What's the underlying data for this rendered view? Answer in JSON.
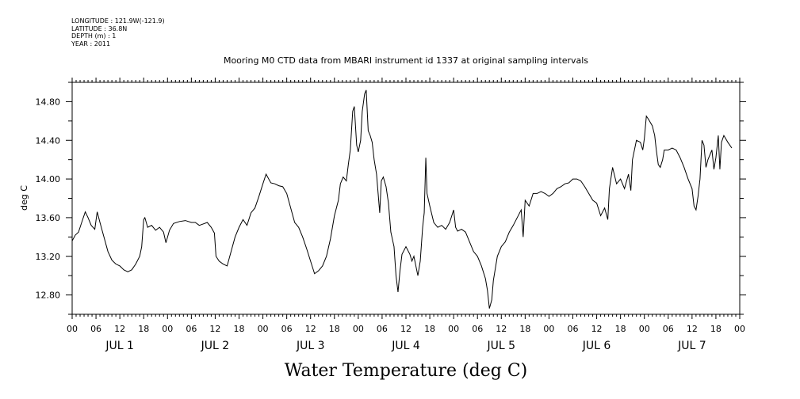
{
  "meta": {
    "longitude": "LONGITUDE : 121.9W(-121.9)",
    "latitude": "LATITUDE : 36.8N",
    "depth": "DEPTH (m) : 1",
    "year": "YEAR : 2011"
  },
  "chart_data": {
    "type": "line",
    "title": "Mooring M0 CTD data from MBARI instrument id 1337 at original sampling intervals",
    "xlabel": "Water Temperature (deg C)",
    "ylabel": "deg C",
    "ylim": [
      12.6,
      15.0
    ],
    "xlim_hours": [
      0,
      168
    ],
    "yticks": [
      12.8,
      13.2,
      13.6,
      14.0,
      14.4,
      14.8
    ],
    "ytick_labels": [
      "12.80",
      "13.20",
      "13.60",
      "14.00",
      "14.40",
      "14.80"
    ],
    "xtick_hours": [
      0,
      6,
      12,
      18,
      24,
      30,
      36,
      42,
      48,
      54,
      60,
      66,
      72,
      78,
      84,
      90,
      96,
      102,
      108,
      114,
      120,
      126,
      132,
      138,
      144,
      150,
      156,
      162,
      168
    ],
    "xtick_labels": [
      "00",
      "06",
      "12",
      "18",
      "00",
      "06",
      "12",
      "18",
      "00",
      "06",
      "12",
      "18",
      "00",
      "06",
      "12",
      "18",
      "00",
      "06",
      "12",
      "18",
      "00",
      "06",
      "12",
      "18",
      "00",
      "06",
      "12",
      "18",
      "00"
    ],
    "day_labels": [
      "JUL 1",
      "JUL 2",
      "JUL 3",
      "JUL 4",
      "JUL 5",
      "JUL 6",
      "JUL 7"
    ],
    "series": [
      {
        "points": [
          [
            0,
            13.36
          ],
          [
            0.8,
            13.42
          ],
          [
            1.6,
            13.45
          ],
          [
            2.4,
            13.55
          ],
          [
            3.3,
            13.66
          ],
          [
            4.0,
            13.6
          ],
          [
            4.8,
            13.52
          ],
          [
            5.7,
            13.48
          ],
          [
            6.3,
            13.66
          ],
          [
            7.0,
            13.55
          ],
          [
            8.0,
            13.4
          ],
          [
            9.0,
            13.25
          ],
          [
            10.0,
            13.16
          ],
          [
            11.0,
            13.12
          ],
          [
            12.0,
            13.1
          ],
          [
            13.0,
            13.06
          ],
          [
            14.0,
            13.04
          ],
          [
            15.0,
            13.06
          ],
          [
            16.0,
            13.12
          ],
          [
            17.0,
            13.2
          ],
          [
            17.5,
            13.3
          ],
          [
            18.0,
            13.58
          ],
          [
            18.3,
            13.6
          ],
          [
            19.0,
            13.5
          ],
          [
            20.0,
            13.52
          ],
          [
            21.0,
            13.47
          ],
          [
            22.0,
            13.5
          ],
          [
            23.0,
            13.45
          ],
          [
            23.6,
            13.34
          ],
          [
            24.5,
            13.47
          ],
          [
            25.5,
            13.54
          ],
          [
            27.0,
            13.56
          ],
          [
            28.5,
            13.57
          ],
          [
            30.0,
            13.55
          ],
          [
            31.0,
            13.55
          ],
          [
            32.0,
            13.52
          ],
          [
            34.0,
            13.55
          ],
          [
            35.0,
            13.5
          ],
          [
            35.8,
            13.44
          ],
          [
            36.2,
            13.2
          ],
          [
            37.0,
            13.15
          ],
          [
            38.0,
            13.12
          ],
          [
            39.0,
            13.1
          ],
          [
            40.0,
            13.25
          ],
          [
            41.0,
            13.4
          ],
          [
            42.0,
            13.5
          ],
          [
            43.0,
            13.58
          ],
          [
            44.0,
            13.52
          ],
          [
            45.0,
            13.65
          ],
          [
            46.0,
            13.7
          ],
          [
            47.0,
            13.82
          ],
          [
            48.0,
            13.95
          ],
          [
            48.8,
            14.05
          ],
          [
            50.0,
            13.96
          ],
          [
            51.0,
            13.95
          ],
          [
            52.0,
            13.93
          ],
          [
            53.0,
            13.92
          ],
          [
            54.0,
            13.85
          ],
          [
            55.0,
            13.7
          ],
          [
            56.0,
            13.55
          ],
          [
            57.0,
            13.5
          ],
          [
            58.0,
            13.4
          ],
          [
            59.0,
            13.28
          ],
          [
            60.0,
            13.15
          ],
          [
            61.0,
            13.02
          ],
          [
            62.0,
            13.05
          ],
          [
            63.0,
            13.1
          ],
          [
            64.0,
            13.2
          ],
          [
            65.0,
            13.38
          ],
          [
            66.0,
            13.62
          ],
          [
            67.0,
            13.78
          ],
          [
            67.5,
            13.95
          ],
          [
            68.2,
            14.02
          ],
          [
            69.0,
            13.98
          ],
          [
            69.5,
            14.15
          ],
          [
            70.0,
            14.3
          ],
          [
            70.6,
            14.7
          ],
          [
            71.0,
            14.75
          ],
          [
            71.6,
            14.35
          ],
          [
            72.0,
            14.28
          ],
          [
            72.6,
            14.4
          ],
          [
            73.0,
            14.7
          ],
          [
            73.6,
            14.88
          ],
          [
            74.0,
            14.92
          ],
          [
            74.5,
            14.5
          ],
          [
            75.0,
            14.45
          ],
          [
            75.5,
            14.38
          ],
          [
            76.0,
            14.2
          ],
          [
            76.6,
            14.05
          ],
          [
            77.0,
            13.85
          ],
          [
            77.4,
            13.65
          ],
          [
            77.8,
            13.98
          ],
          [
            78.3,
            14.02
          ],
          [
            79.0,
            13.92
          ],
          [
            79.6,
            13.75
          ],
          [
            80.2,
            13.45
          ],
          [
            81.0,
            13.3
          ],
          [
            81.5,
            13.0
          ],
          [
            82.0,
            12.83
          ],
          [
            82.5,
            13.05
          ],
          [
            83.0,
            13.22
          ],
          [
            84.0,
            13.3
          ],
          [
            85.0,
            13.22
          ],
          [
            85.5,
            13.15
          ],
          [
            86.0,
            13.2
          ],
          [
            86.5,
            13.1
          ],
          [
            87.0,
            13.0
          ],
          [
            87.6,
            13.15
          ],
          [
            88.2,
            13.5
          ],
          [
            88.6,
            13.65
          ],
          [
            89.0,
            14.22
          ],
          [
            89.3,
            13.85
          ],
          [
            90.0,
            13.72
          ],
          [
            91.0,
            13.55
          ],
          [
            92.0,
            13.5
          ],
          [
            93.0,
            13.52
          ],
          [
            94.0,
            13.48
          ],
          [
            95.0,
            13.55
          ],
          [
            96.0,
            13.68
          ],
          [
            96.5,
            13.5
          ],
          [
            97.0,
            13.46
          ],
          [
            98.0,
            13.48
          ],
          [
            99.0,
            13.45
          ],
          [
            100.0,
            13.35
          ],
          [
            101.0,
            13.25
          ],
          [
            102.0,
            13.2
          ],
          [
            103.0,
            13.1
          ],
          [
            104.0,
            12.97
          ],
          [
            104.5,
            12.85
          ],
          [
            105.0,
            12.66
          ],
          [
            105.6,
            12.75
          ],
          [
            106.0,
            12.95
          ],
          [
            107.0,
            13.2
          ],
          [
            108.0,
            13.3
          ],
          [
            109.0,
            13.35
          ],
          [
            110.0,
            13.45
          ],
          [
            111.0,
            13.52
          ],
          [
            112.0,
            13.6
          ],
          [
            113.0,
            13.68
          ],
          [
            113.5,
            13.4
          ],
          [
            114.0,
            13.78
          ],
          [
            115.0,
            13.72
          ],
          [
            116.0,
            13.85
          ],
          [
            117.0,
            13.85
          ],
          [
            118.0,
            13.87
          ],
          [
            119.0,
            13.85
          ],
          [
            120.0,
            13.82
          ],
          [
            121.0,
            13.85
          ],
          [
            122.0,
            13.9
          ],
          [
            123.0,
            13.92
          ],
          [
            124.0,
            13.95
          ],
          [
            125.0,
            13.96
          ],
          [
            126.0,
            14.0
          ],
          [
            127.0,
            14.0
          ],
          [
            128.0,
            13.98
          ],
          [
            129.0,
            13.92
          ],
          [
            130.0,
            13.85
          ],
          [
            131.0,
            13.78
          ],
          [
            132.0,
            13.75
          ],
          [
            133.0,
            13.62
          ],
          [
            134.0,
            13.7
          ],
          [
            134.8,
            13.58
          ],
          [
            135.2,
            13.9
          ],
          [
            136.0,
            14.12
          ],
          [
            137.0,
            13.95
          ],
          [
            138.0,
            14.0
          ],
          [
            139.0,
            13.9
          ],
          [
            140.0,
            14.05
          ],
          [
            140.6,
            13.88
          ],
          [
            141.0,
            14.2
          ],
          [
            142.0,
            14.4
          ],
          [
            143.0,
            14.38
          ],
          [
            143.6,
            14.3
          ],
          [
            144.0,
            14.42
          ],
          [
            144.5,
            14.65
          ],
          [
            145.0,
            14.62
          ],
          [
            146.0,
            14.55
          ],
          [
            146.6,
            14.45
          ],
          [
            147.0,
            14.3
          ],
          [
            147.5,
            14.15
          ],
          [
            148.0,
            14.12
          ],
          [
            148.6,
            14.2
          ],
          [
            149.0,
            14.3
          ],
          [
            150.0,
            14.3
          ],
          [
            151.0,
            14.32
          ],
          [
            152.0,
            14.3
          ],
          [
            153.0,
            14.22
          ],
          [
            154.0,
            14.12
          ],
          [
            155.0,
            14.0
          ],
          [
            156.0,
            13.9
          ],
          [
            156.5,
            13.72
          ],
          [
            157.0,
            13.68
          ],
          [
            157.5,
            13.82
          ],
          [
            158.0,
            14.0
          ],
          [
            158.5,
            14.4
          ],
          [
            159.0,
            14.35
          ],
          [
            159.5,
            14.12
          ],
          [
            160.0,
            14.2
          ],
          [
            161.0,
            14.3
          ],
          [
            161.5,
            14.1
          ],
          [
            162.0,
            14.22
          ],
          [
            162.6,
            14.45
          ],
          [
            163.0,
            14.1
          ],
          [
            163.4,
            14.38
          ],
          [
            164.0,
            14.45
          ],
          [
            165.0,
            14.38
          ],
          [
            166.0,
            14.32
          ]
        ]
      }
    ]
  }
}
